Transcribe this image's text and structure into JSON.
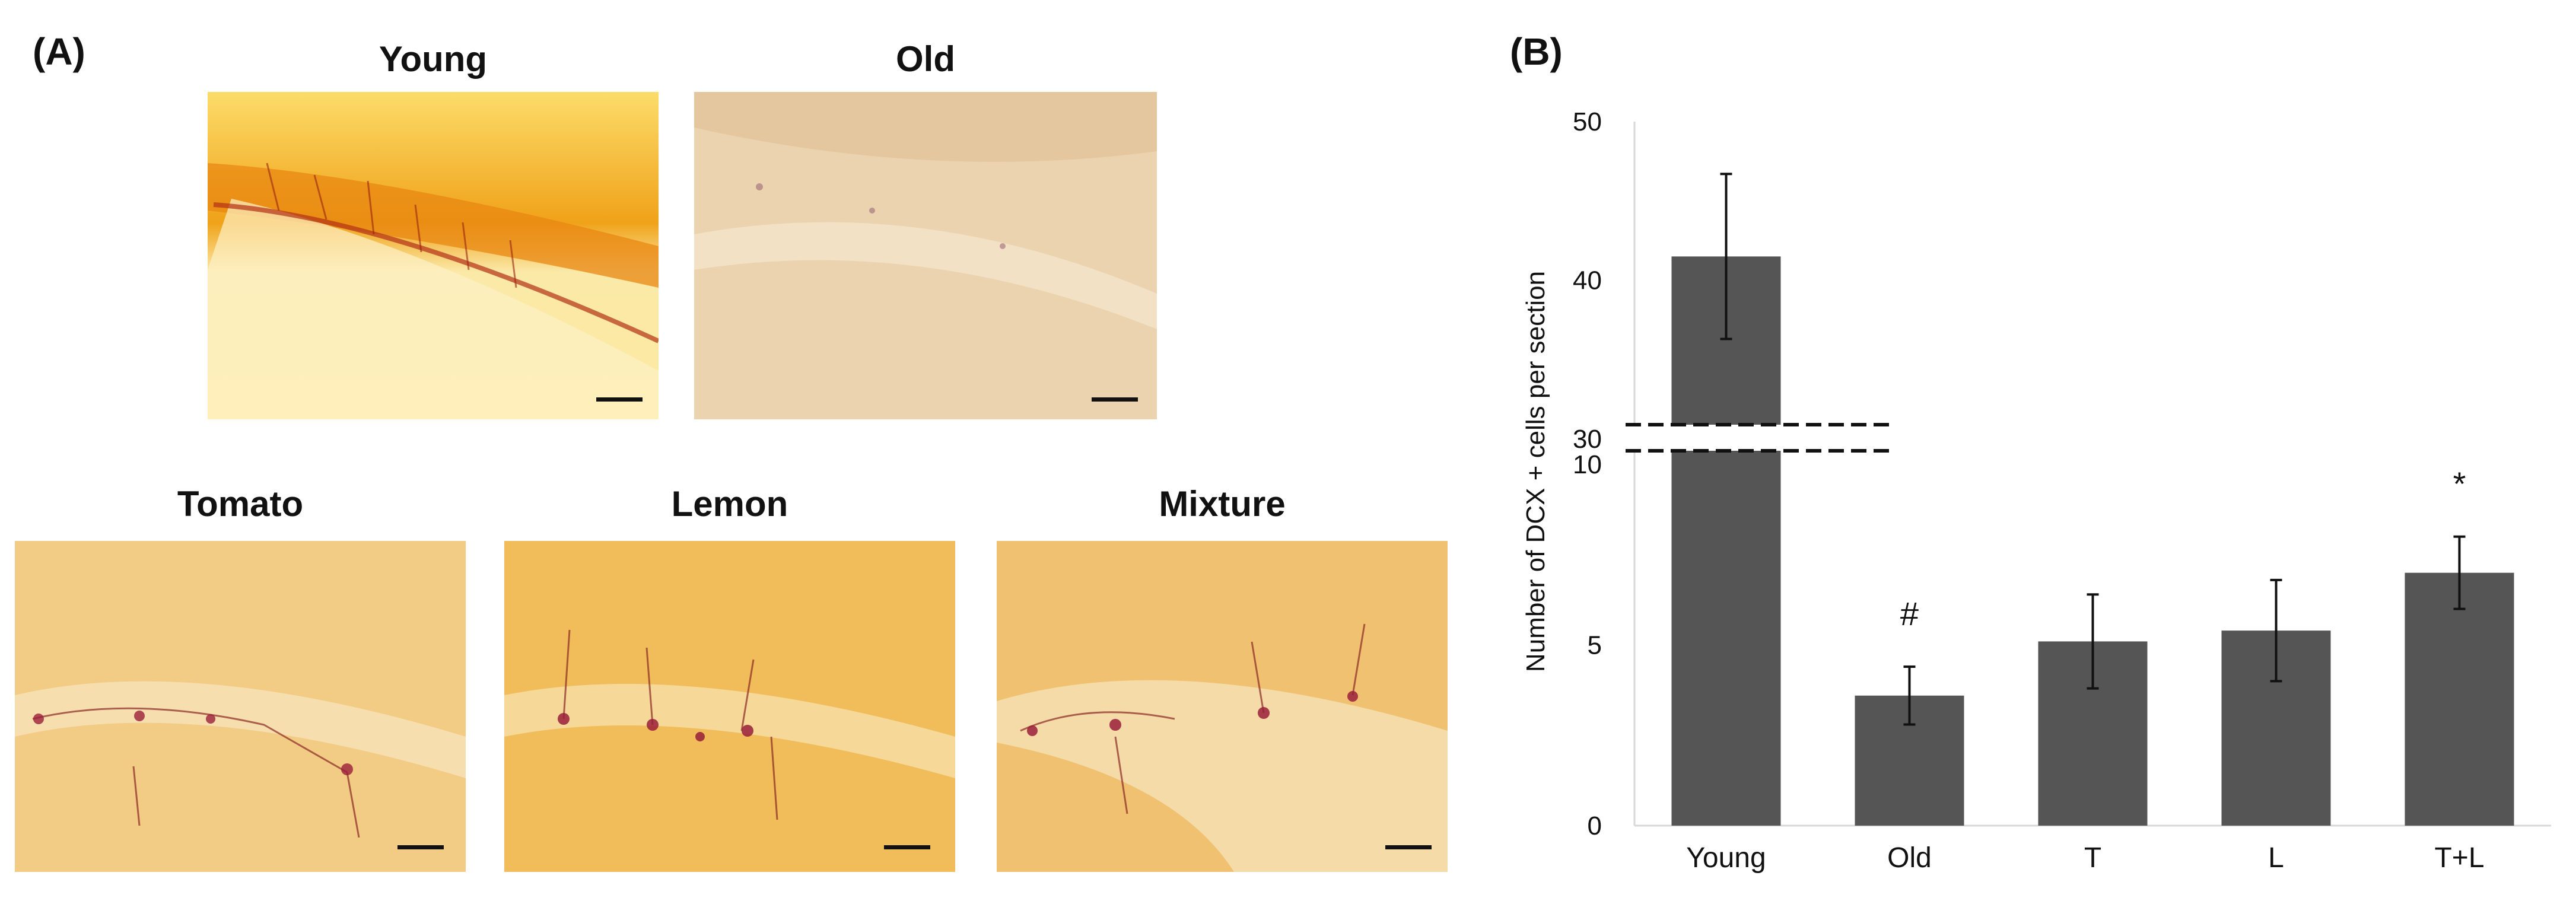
{
  "panel_a": {
    "label": "(A)",
    "images": [
      {
        "title": "Young",
        "tint": "#f2b431"
      },
      {
        "title": "Old",
        "tint": "#ead2b0"
      },
      {
        "title": "Tomato",
        "tint": "#f1c77a"
      },
      {
        "title": "Lemon",
        "tint": "#efba55"
      },
      {
        "title": "Mixture",
        "tint": "#efbe66"
      }
    ]
  },
  "panel_b": {
    "label": "(B)"
  },
  "chart_data": {
    "type": "bar",
    "categories": [
      "Young",
      "Old",
      "T",
      "L",
      "T+L"
    ],
    "values": [
      41.5,
      3.6,
      5.1,
      5.4,
      7.0
    ],
    "errors": [
      5.2,
      0.8,
      1.3,
      1.4,
      1.0
    ],
    "ylabel": "Number of DCX + cells per section",
    "axis_break": {
      "lower_max": 10,
      "upper_min": 30
    },
    "lower_ticks": [
      0,
      5,
      10
    ],
    "upper_ticks": [
      30,
      40,
      50
    ],
    "annotations": [
      {
        "category": "Old",
        "text": "#"
      },
      {
        "category": "T+L",
        "text": "*"
      }
    ],
    "bar_color": "#555555"
  }
}
